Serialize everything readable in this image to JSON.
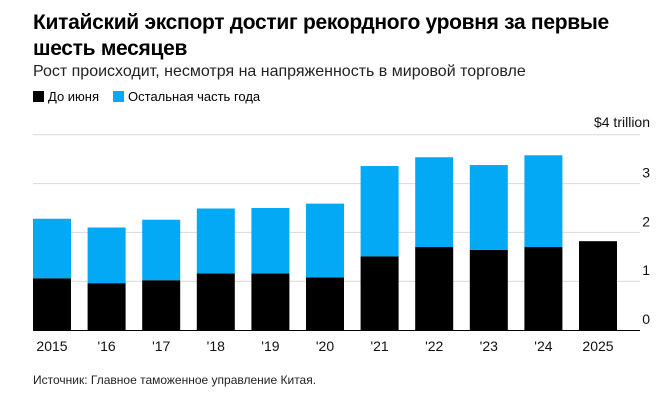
{
  "colors": {
    "first_half": "#000000",
    "rest_of_year": "#03a9f4",
    "grid": "#d9d9d9"
  },
  "chart_data": {
    "type": "bar",
    "stacked": true,
    "title": "Китайский экспорт достиг рекордного уровня за первые шесть месяцев",
    "subtitle": "Рост происходит, несмотря на напряженность в мировой торговле",
    "categories": [
      "2015",
      "'16",
      "'17",
      "'18",
      "'19",
      "'20",
      "'21",
      "'22",
      "'23",
      "'24",
      "2025"
    ],
    "series": [
      {
        "name": "До июня",
        "values": [
          1.06,
          0.96,
          1.02,
          1.16,
          1.16,
          1.08,
          1.51,
          1.7,
          1.64,
          1.7,
          1.82
        ]
      },
      {
        "name": "Остальная часть года",
        "values": [
          1.22,
          1.14,
          1.24,
          1.33,
          1.34,
          1.51,
          1.85,
          1.84,
          1.74,
          1.88,
          null
        ]
      }
    ],
    "yticks": [
      "0",
      "1",
      "2",
      "3",
      "$4 trillion"
    ],
    "ytick_values": [
      0,
      1,
      2,
      3,
      4
    ],
    "ylim": [
      0,
      4
    ],
    "grid": true,
    "legend_position": "top-left",
    "source": "Источник: Главное таможенное управление Китая."
  }
}
